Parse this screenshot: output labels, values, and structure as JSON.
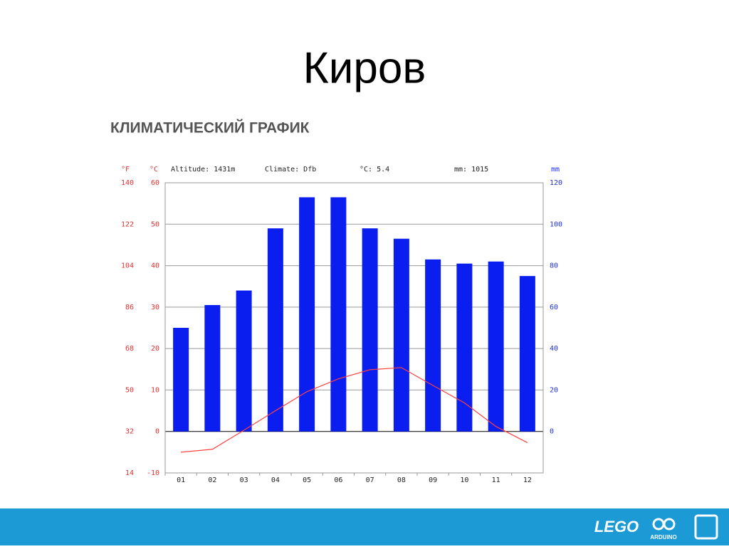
{
  "page_title": "Киров",
  "chart_data": {
    "type": "bar",
    "title": "КЛИМАТИЧЕСКИЙ ГРАФИК",
    "annotations": [
      "Altitude: 1431m",
      "Climate: Dfb",
      "°C: 5.4",
      "mm: 1015"
    ],
    "y_label": "°C",
    "y2_label": "mm",
    "y3_label": "°F",
    "categories": [
      "01",
      "02",
      "03",
      "04",
      "05",
      "06",
      "07",
      "08",
      "09",
      "10",
      "11",
      "12"
    ],
    "series": [
      {
        "name": "mm",
        "color": "#0a1ef0",
        "axis": "y2",
        "kind": "bar",
        "values": [
          50,
          61,
          68,
          98,
          113,
          113,
          98,
          93,
          83,
          81,
          82,
          75
        ]
      },
      {
        "name": "°C",
        "color": "#ff4040",
        "axis": "y",
        "kind": "line",
        "values": [
          -5,
          -4.3,
          0.3,
          5,
          9.6,
          12.7,
          14.9,
          15.4,
          11.1,
          6.9,
          1.2,
          -2.7
        ]
      }
    ],
    "ylim": [
      -10,
      60
    ],
    "yticks": [
      -10,
      0,
      10,
      20,
      30,
      40,
      50,
      60
    ],
    "y2lim": [
      -20,
      120
    ],
    "y2ticks": [
      0,
      20,
      40,
      60,
      80,
      100,
      120
    ],
    "y3lim": [
      14,
      140
    ],
    "y3ticks": [
      14,
      32,
      50,
      68,
      86,
      104,
      122,
      140
    ],
    "grid": true
  },
  "footer": {
    "logos": [
      "LEGO",
      "ARDUINO"
    ]
  }
}
